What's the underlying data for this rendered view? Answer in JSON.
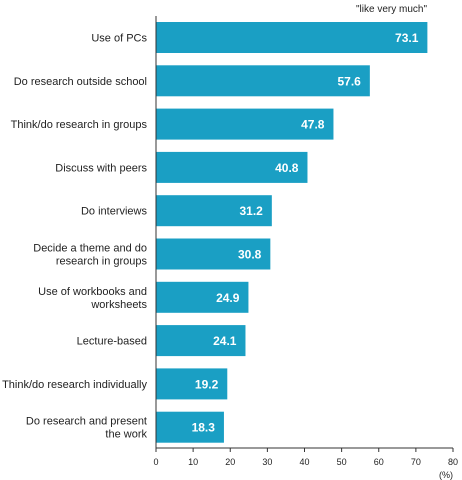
{
  "chart_data": {
    "type": "bar",
    "orientation": "horizontal",
    "categories": [
      [
        "Use of PCs"
      ],
      [
        "Do research outside school"
      ],
      [
        "Think/do research in groups"
      ],
      [
        "Discuss with peers"
      ],
      [
        "Do interviews"
      ],
      [
        "Decide a theme and do",
        "research in groups"
      ],
      [
        "Use of workbooks and",
        "worksheets"
      ],
      [
        "Lecture-based"
      ],
      [
        "Think/do research individually"
      ],
      [
        "Do research and present",
        "the work"
      ]
    ],
    "values": [
      73.1,
      57.6,
      47.8,
      40.8,
      31.2,
      30.8,
      24.9,
      24.1,
      19.2,
      18.3
    ],
    "value_labels": [
      "73.1",
      "57.6",
      "47.8",
      "40.8",
      "31.2",
      "30.8",
      "24.9",
      "24.1",
      "19.2",
      "18.3"
    ],
    "xlim": [
      0,
      80
    ],
    "xticks": [
      0,
      10,
      20,
      30,
      40,
      50,
      60,
      70,
      80
    ],
    "xtick_labels": [
      "0",
      "10",
      "20",
      "30",
      "40",
      "50",
      "60",
      "70",
      "80"
    ],
    "unit_label": "(%)",
    "legend_note": "\"like very much\"",
    "grid": false,
    "bar_color": "#1a9fc4"
  }
}
